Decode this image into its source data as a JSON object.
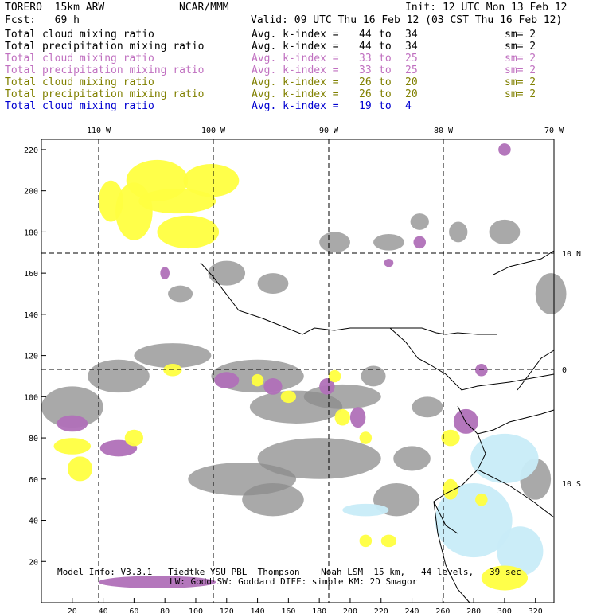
{
  "header": {
    "model": "TORERO  15km ARW",
    "center": "NCAR/MMM",
    "init": "Init: 12 UTC Mon 13 Feb 12",
    "fcst": "Fcst:   69 h",
    "valid": "Valid: 09 UTC Thu 16 Feb 12 (03 CST Thu 16 Feb 12)"
  },
  "legend": [
    {
      "field": "Total cloud mixing ratio",
      "stat": "Avg. k-index =",
      "from": "44",
      "to_word": "to",
      "to": "34",
      "sm": "sm= 2",
      "color": "#000000"
    },
    {
      "field": "Total precipitation mixing ratio",
      "stat": "Avg. k-index =",
      "from": "44",
      "to_word": "to",
      "to": "34",
      "sm": "sm= 2",
      "color": "#000000"
    },
    {
      "field": "Total cloud mixing ratio",
      "stat": "Avg. k-index =",
      "from": "33",
      "to_word": "to",
      "to": "25",
      "sm": "sm= 2",
      "color": "#c070c0"
    },
    {
      "field": "Total precipitation mixing ratio",
      "stat": "Avg. k-index =",
      "from": "33",
      "to_word": "to",
      "to": "25",
      "sm": "sm= 2",
      "color": "#c070c0"
    },
    {
      "field": "Total cloud mixing ratio",
      "stat": "Avg. k-index =",
      "from": "26",
      "to_word": "to",
      "to": "20",
      "sm": "sm= 2",
      "color": "#808000"
    },
    {
      "field": "Total precipitation mixing ratio",
      "stat": "Avg. k-index =",
      "from": "26",
      "to_word": "to",
      "to": "20",
      "sm": "sm= 2",
      "color": "#808000"
    },
    {
      "field": "Total cloud mixing ratio",
      "stat": "Avg. k-index =",
      "from": "19",
      "to_word": "to",
      "to": "4",
      "sm": "",
      "color": "#0000d0"
    }
  ],
  "map": {
    "lon_labels": [
      "110 W",
      "100 W",
      "90 W",
      "80 W",
      "70 W"
    ],
    "lat_labels": [
      "10 N",
      "0",
      "10 S"
    ],
    "x_ticks": [
      "20",
      "40",
      "60",
      "80",
      "100",
      "120",
      "140",
      "160",
      "180",
      "200",
      "220",
      "240",
      "260",
      "280",
      "300",
      "320"
    ],
    "y_ticks": [
      "20",
      "40",
      "60",
      "80",
      "100",
      "120",
      "140",
      "160",
      "180",
      "200",
      "220"
    ],
    "colors": {
      "gray": "#8c8c8c",
      "purple": "#b070b8",
      "yellow": "#ffff40",
      "lightblue": "#c8ecf8"
    }
  },
  "footer": {
    "line1": "Model Info: V3.3.1   Tiedtke YSU PBL  Thompson    Noah LSM  15 km,   44 levels,   39 sec",
    "line2": "LW: Godd SW: Goddard DIFF: simple KM: 2D Smagor"
  }
}
